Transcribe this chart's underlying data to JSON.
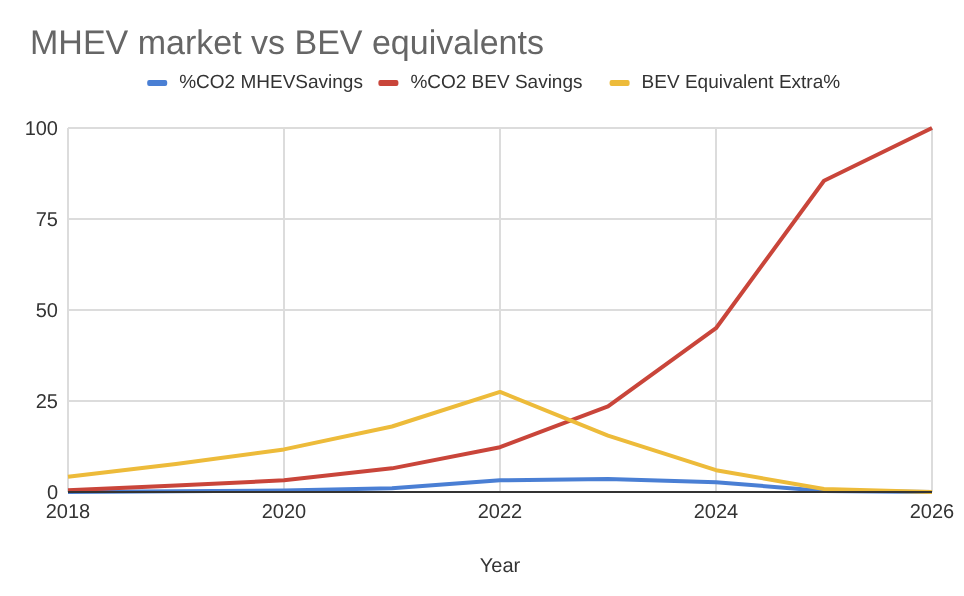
{
  "chart_data": {
    "type": "line",
    "title": "MHEV market vs BEV equivalents",
    "xlabel": "Year",
    "x": [
      2018,
      2019,
      2020,
      2021,
      2022,
      2023,
      2024,
      2025,
      2026
    ],
    "series": [
      {
        "name": "%CO2 MHEVSavings",
        "color": "#4a7fd4",
        "values": [
          0,
          0.2,
          0.4,
          1,
          3.2,
          3.6,
          2.7,
          0.3,
          0
        ]
      },
      {
        "name": "%CO2 BEV Savings",
        "color": "#c9453a",
        "values": [
          0.5,
          1.8,
          3.2,
          6.5,
          12.3,
          23.5,
          45,
          85.5,
          100
        ]
      },
      {
        "name": "BEV Equivalent Extra%",
        "color": "#edbb3a",
        "values": [
          4.2,
          7.7,
          11.7,
          18,
          27.5,
          15.5,
          6,
          0.8,
          0
        ]
      }
    ],
    "xlim": [
      2018,
      2026
    ],
    "xticks": [
      2018,
      2020,
      2022,
      2024,
      2026
    ],
    "ylim": [
      0,
      100
    ],
    "yticks": [
      0,
      25,
      50,
      75,
      100
    ],
    "grid": true,
    "legend": "top",
    "marker": "none",
    "line_style": "solid"
  }
}
